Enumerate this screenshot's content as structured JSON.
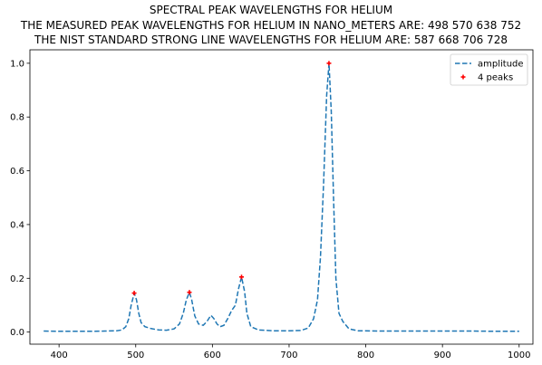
{
  "chart_data": {
    "type": "line",
    "title_lines": [
      "SPECTRAL PEAK WAVELENGTHS FOR HELIUM",
      "THE MEASURED PEAK WAVELENGTHS FOR HELIUM IN NANO_METERS ARE: 498 570 638 752",
      "THE NIST STANDARD STRONG LINE WAVELENGTHS FOR HELIUM ARE: 587 668 706 728"
    ],
    "xlabel": "",
    "ylabel": "",
    "xlim": [
      362,
      1018
    ],
    "ylim": [
      -0.045,
      1.05
    ],
    "xticks": [
      400,
      500,
      600,
      700,
      800,
      900,
      1000
    ],
    "yticks": [
      0.0,
      0.2,
      0.4,
      0.6,
      0.8,
      1.0
    ],
    "ytick_labels": [
      "0.0",
      "0.2",
      "0.4",
      "0.6",
      "0.8",
      "1.0"
    ],
    "grid": false,
    "legend_position": "upper right",
    "series": [
      {
        "name": "amplitude",
        "style": "dashed",
        "color": "#1f77b4",
        "points": [
          [
            380,
            0.004
          ],
          [
            400,
            0.003
          ],
          [
            420,
            0.003
          ],
          [
            440,
            0.003
          ],
          [
            460,
            0.004
          ],
          [
            475,
            0.005
          ],
          [
            482,
            0.008
          ],
          [
            487,
            0.02
          ],
          [
            491,
            0.05
          ],
          [
            494,
            0.1
          ],
          [
            498,
            0.145
          ],
          [
            501,
            0.12
          ],
          [
            504,
            0.07
          ],
          [
            507,
            0.035
          ],
          [
            512,
            0.02
          ],
          [
            520,
            0.013
          ],
          [
            530,
            0.008
          ],
          [
            540,
            0.007
          ],
          [
            550,
            0.012
          ],
          [
            557,
            0.03
          ],
          [
            562,
            0.07
          ],
          [
            566,
            0.12
          ],
          [
            570,
            0.148
          ],
          [
            573,
            0.12
          ],
          [
            577,
            0.06
          ],
          [
            582,
            0.03
          ],
          [
            588,
            0.025
          ],
          [
            593,
            0.04
          ],
          [
            598,
            0.062
          ],
          [
            602,
            0.05
          ],
          [
            606,
            0.03
          ],
          [
            610,
            0.02
          ],
          [
            615,
            0.025
          ],
          [
            620,
            0.05
          ],
          [
            625,
            0.08
          ],
          [
            630,
            0.1
          ],
          [
            634,
            0.16
          ],
          [
            638,
            0.205
          ],
          [
            642,
            0.15
          ],
          [
            645,
            0.07
          ],
          [
            650,
            0.02
          ],
          [
            660,
            0.008
          ],
          [
            680,
            0.005
          ],
          [
            700,
            0.005
          ],
          [
            715,
            0.006
          ],
          [
            725,
            0.015
          ],
          [
            732,
            0.05
          ],
          [
            737,
            0.12
          ],
          [
            741,
            0.28
          ],
          [
            745,
            0.55
          ],
          [
            749,
            0.88
          ],
          [
            752,
            1.0
          ],
          [
            755,
            0.82
          ],
          [
            758,
            0.5
          ],
          [
            761,
            0.2
          ],
          [
            765,
            0.07
          ],
          [
            770,
            0.04
          ],
          [
            778,
            0.012
          ],
          [
            790,
            0.005
          ],
          [
            820,
            0.004
          ],
          [
            860,
            0.004
          ],
          [
            900,
            0.004
          ],
          [
            940,
            0.004
          ],
          [
            970,
            0.003
          ],
          [
            1000,
            0.003
          ]
        ]
      },
      {
        "name": "4 peaks",
        "style": "marker-plus",
        "color": "#ff0000",
        "x": [
          498,
          570,
          638,
          752
        ],
        "y": [
          0.145,
          0.148,
          0.205,
          1.0
        ]
      }
    ]
  }
}
